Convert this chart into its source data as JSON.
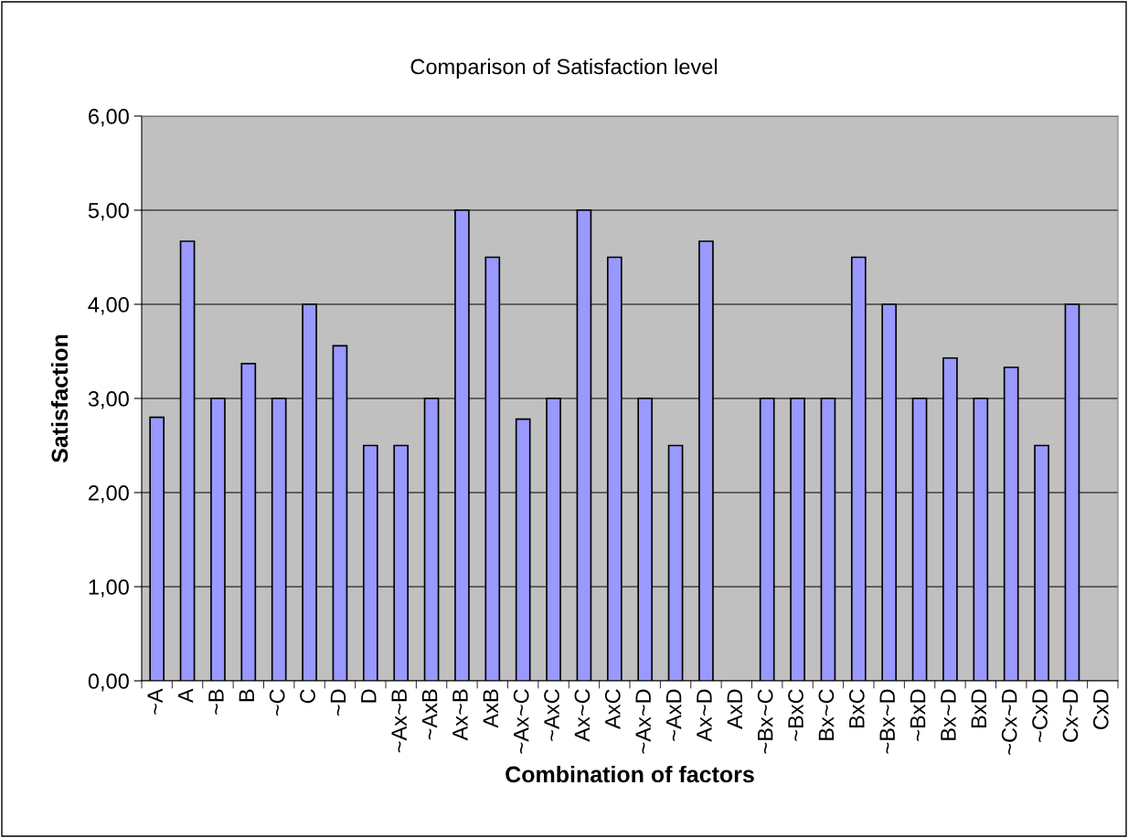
{
  "chart_data": {
    "type": "bar",
    "title": "Comparison of Satisfaction level",
    "xlabel": "Combination of factors",
    "ylabel": "Satisfaction",
    "categories": [
      "~A",
      "A",
      "~B",
      "B",
      "~C",
      "C",
      "~D",
      "D",
      "~Ax~B",
      "~AxB",
      "Ax~B",
      "AxB",
      "~Ax~C",
      "~AxC",
      "Ax~C",
      "AxC",
      "~Ax~D",
      "~AxD",
      "Ax~D",
      "AxD",
      "~Bx~C",
      "~BxC",
      "Bx~C",
      "BxC",
      "~Bx~D",
      "~BxD",
      "Bx~D",
      "BxD",
      "~Cx~D",
      "~CxD",
      "Cx~D",
      "CxD"
    ],
    "values": [
      2.8,
      4.67,
      3,
      3.37,
      3,
      4,
      3.56,
      2.5,
      2.5,
      3,
      5,
      4.5,
      2.78,
      3,
      5,
      4.5,
      3,
      2.5,
      4.67,
      null,
      3,
      3,
      3,
      4.5,
      4,
      3,
      3.43,
      3,
      3.33,
      2.5,
      4,
      null
    ],
    "color": "#9999ff",
    "ylim": [
      0,
      6
    ],
    "yticks": [
      {
        "value": 0,
        "label": "0,00"
      },
      {
        "value": 1,
        "label": "1,00"
      },
      {
        "value": 2,
        "label": "2,00"
      },
      {
        "value": 3,
        "label": "3,00"
      },
      {
        "value": 4,
        "label": "4,00"
      },
      {
        "value": 5,
        "label": "5,00"
      },
      {
        "value": 6,
        "label": "6,00"
      }
    ],
    "grid": "y",
    "legend": false
  }
}
